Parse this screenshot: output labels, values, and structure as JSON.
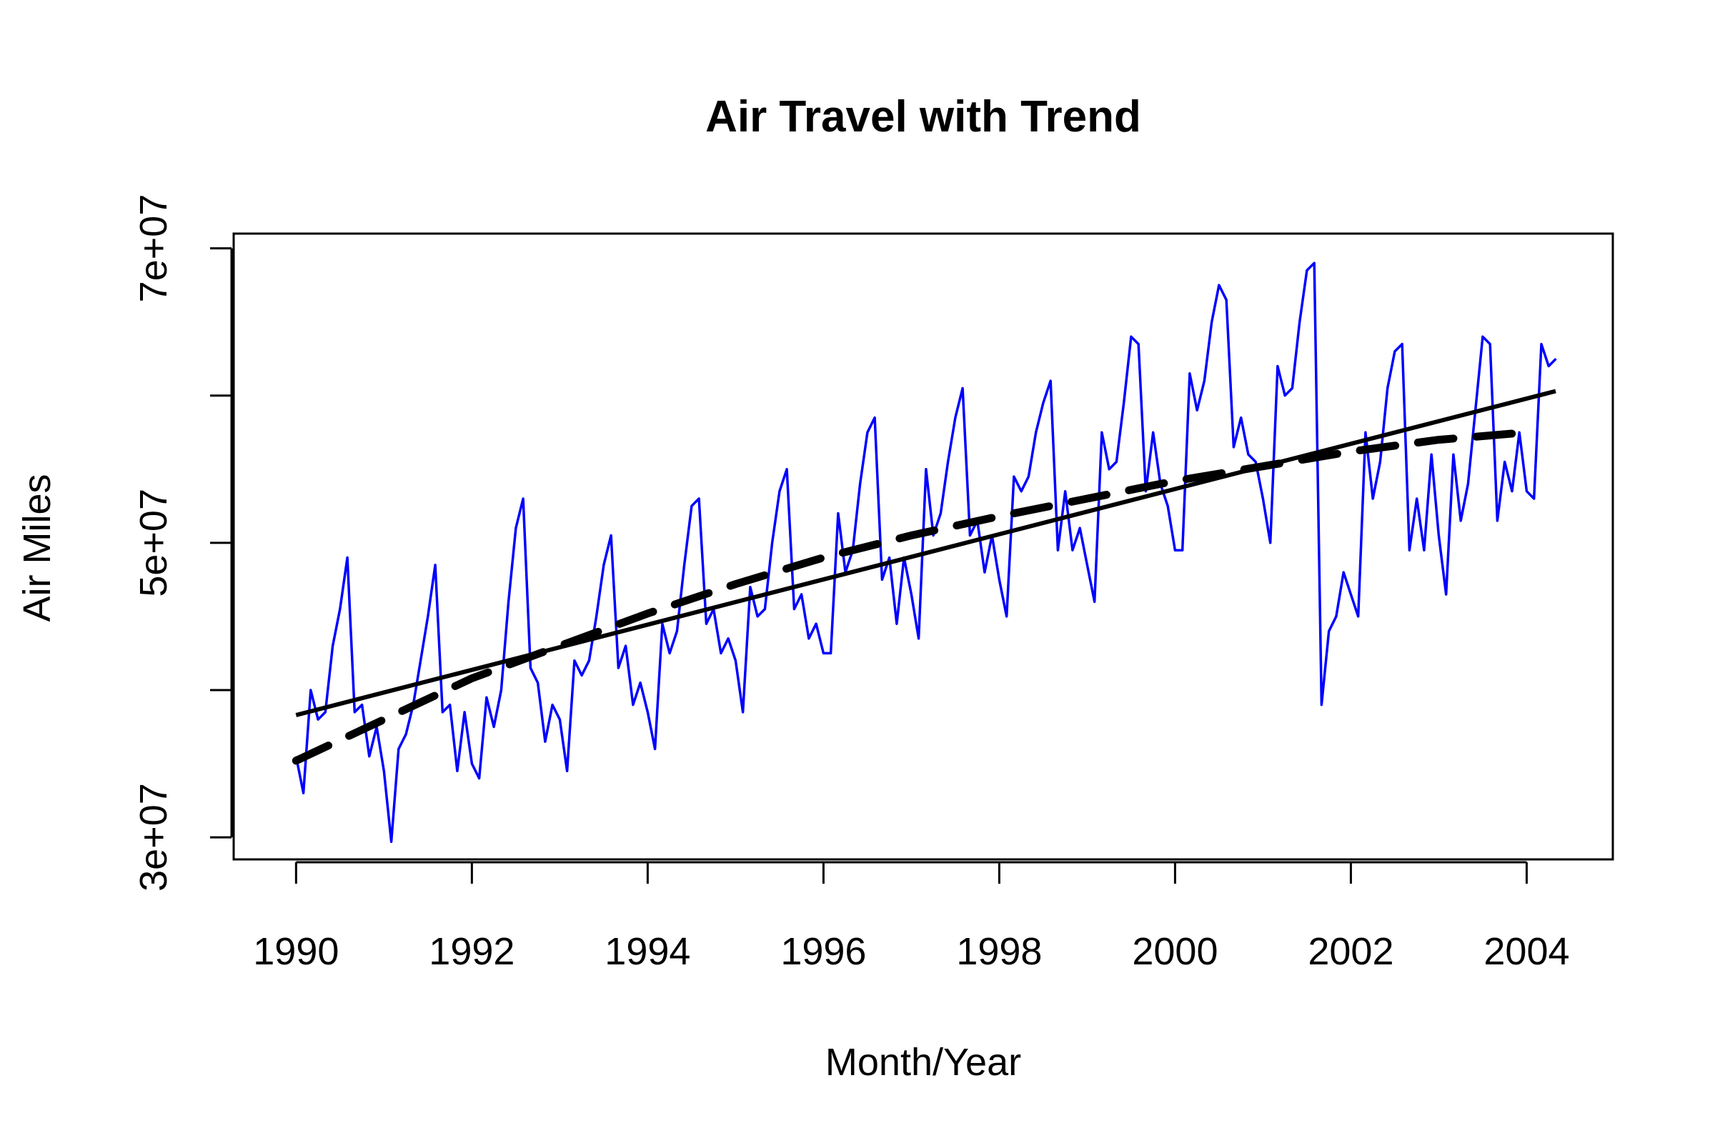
{
  "chart_data": {
    "type": "line",
    "title": "Air Travel with Trend",
    "xlabel": "Month/Year",
    "ylabel": "Air Miles",
    "xlim": [
      1989.29,
      2004.98
    ],
    "ylim": [
      28500000,
      71000000
    ],
    "x_ticks": [
      1990,
      1992,
      1994,
      1996,
      1998,
      2000,
      2002,
      2004
    ],
    "x_tick_labels": [
      "1990",
      "1992",
      "1994",
      "1996",
      "1998",
      "2000",
      "2002",
      "2004"
    ],
    "y_ticks": [
      30000000,
      40000000,
      50000000,
      60000000,
      70000000
    ],
    "y_tick_labels": [
      "3e+07",
      "",
      "5e+07",
      "",
      "7e+07"
    ],
    "grid": false,
    "legend": "none",
    "x_start": 1990.0,
    "x_step_months": 1,
    "series": [
      {
        "style": "line",
        "color": "#0000FF",
        "values": [
          35500000,
          33000000,
          40000000,
          38000000,
          38500000,
          43000000,
          45500000,
          49000000,
          38500000,
          39000000,
          35500000,
          37500000,
          34500000,
          29700000,
          36000000,
          37000000,
          39000000,
          42000000,
          45000000,
          48500000,
          38500000,
          39000000,
          34500000,
          38500000,
          35000000,
          34000000,
          39500000,
          37500000,
          40000000,
          46000000,
          51000000,
          53000000,
          41500000,
          40500000,
          36500000,
          39000000,
          38000000,
          34500000,
          42000000,
          41000000,
          42000000,
          45000000,
          48500000,
          50500000,
          41500000,
          43000000,
          39000000,
          40500000,
          38500000,
          36000000,
          44500000,
          42500000,
          44000000,
          48500000,
          52500000,
          53000000,
          44500000,
          45500000,
          42500000,
          43500000,
          42000000,
          38500000,
          47000000,
          45000000,
          45500000,
          50000000,
          53500000,
          55000000,
          45500000,
          46500000,
          43500000,
          44500000,
          42500000,
          42500000,
          52000000,
          48000000,
          49500000,
          54000000,
          57500000,
          58500000,
          47500000,
          49000000,
          44500000,
          49000000,
          46500000,
          43500000,
          55000000,
          50500000,
          52000000,
          55500000,
          58500000,
          60500000,
          50500000,
          51500000,
          48000000,
          50500000,
          47500000,
          45000000,
          54500000,
          53500000,
          54500000,
          57500000,
          59500000,
          61000000,
          49500000,
          53500000,
          49500000,
          51000000,
          48500000,
          46000000,
          57500000,
          55000000,
          55500000,
          59500000,
          64000000,
          63500000,
          53500000,
          57500000,
          54000000,
          52500000,
          49500000,
          49500000,
          61500000,
          59000000,
          61000000,
          65000000,
          67500000,
          66500000,
          56500000,
          58500000,
          56000000,
          55500000,
          53000000,
          50000000,
          62000000,
          60000000,
          60500000,
          65000000,
          68500000,
          69000000,
          39000000,
          44000000,
          45000000,
          48000000,
          46500000,
          45000000,
          57500000,
          53000000,
          55500000,
          60500000,
          63000000,
          63500000,
          49500000,
          53000000,
          49500000,
          56000000,
          50500000,
          46500000,
          56000000,
          51500000,
          54000000,
          59000000,
          64000000,
          63500000,
          51500000,
          55500000,
          53500000,
          57500000,
          53500000,
          53000000,
          63500000,
          62000000,
          62500000
        ],
        "name": ""
      },
      {
        "style": "solid",
        "color": "#000000",
        "x": [
          1990.0,
          2004.33
        ],
        "values": [
          38300000,
          60300000
        ],
        "name": ""
      },
      {
        "style": "dashed",
        "color": "#000000",
        "x": [
          1990.0,
          1991.0,
          1992.0,
          1993.0,
          1994.0,
          1995.0,
          1996.0,
          1997.0,
          1998.0,
          1999.0,
          2000.0,
          2001.0,
          2002.0,
          2003.0,
          2004.0
        ],
        "values": [
          35200000,
          38000000,
          40800000,
          43000000,
          45200000,
          47200000,
          49000000,
          50500000,
          51800000,
          53000000,
          54200000,
          55200000,
          56200000,
          57000000,
          57500000
        ],
        "name": ""
      }
    ]
  }
}
